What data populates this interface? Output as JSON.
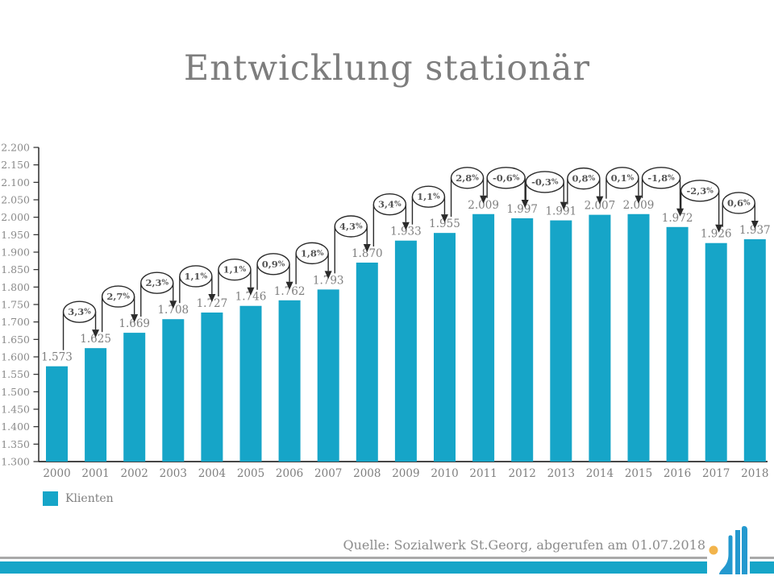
{
  "slide": {
    "title": "Entwicklung stationär",
    "source_note": "Quelle: Sozialwerk St.Georg, abgerufen am 01.07.2018"
  },
  "legend": {
    "label": "Klienten"
  },
  "colors": {
    "bar": "#16a5c8",
    "accent_stripe": "#16a5c8",
    "label_gray": "#7f7f7f",
    "tick_gray": "#8a8a8a",
    "pct_text": "#555555",
    "line_dark": "#2b2b2b",
    "footer_line_gray": "#a9a9a9",
    "logo_blue": "#2499cf",
    "logo_yellow": "#f2b44c"
  },
  "chart_data": {
    "type": "bar",
    "title": "Entwicklung stationär",
    "categories": [
      "2000",
      "2001",
      "2002",
      "2003",
      "2004",
      "2005",
      "2006",
      "2007",
      "2008",
      "2009",
      "2010",
      "2011",
      "2012",
      "2013",
      "2014",
      "2015",
      "2016",
      "2017",
      "2018"
    ],
    "series": [
      {
        "name": "Klienten",
        "values": [
          1573,
          1625,
          1669,
          1708,
          1727,
          1746,
          1762,
          1793,
          1870,
          1933,
          1955,
          2009,
          1997,
          1991,
          2007,
          2009,
          1972,
          1926,
          1937
        ]
      }
    ],
    "pct_change_labels": [
      "3,3%",
      "2,7%",
      "2,3%",
      "1,1%",
      "1,1%",
      "0,9%",
      "1,8%",
      "4,3%",
      "3,4%",
      "1,1%",
      "2,8%",
      "-0,6%",
      "-0,3%",
      "0,8%",
      "0,1%",
      "-1,8%",
      "-2,3%",
      "0,6%"
    ],
    "xlabel": "",
    "ylabel": "",
    "ylim": [
      1300,
      2200
    ],
    "ytick_step": 50,
    "ytick_labels": [
      "1.300",
      "1.350",
      "1.400",
      "1.450",
      "1.500",
      "1.550",
      "1.600",
      "1.650",
      "1.700",
      "1.750",
      "1.800",
      "1.850",
      "1.900",
      "1.950",
      "2.000",
      "2.050",
      "2.100",
      "2.150",
      "2.200"
    ],
    "value_labels": [
      "1.573",
      "1.625",
      "1.669",
      "1.708",
      "1.727",
      "1.746",
      "1.762",
      "1.793",
      "1.870",
      "1.933",
      "1.955",
      "2.009",
      "1.997",
      "1.991",
      "2.007",
      "2.009",
      "1.972",
      "1.926",
      "1.937"
    ],
    "number_format": "de-thousands-dot",
    "legend": [
      "Klienten"
    ],
    "legend_position": "bottom-left",
    "grid": false
  }
}
